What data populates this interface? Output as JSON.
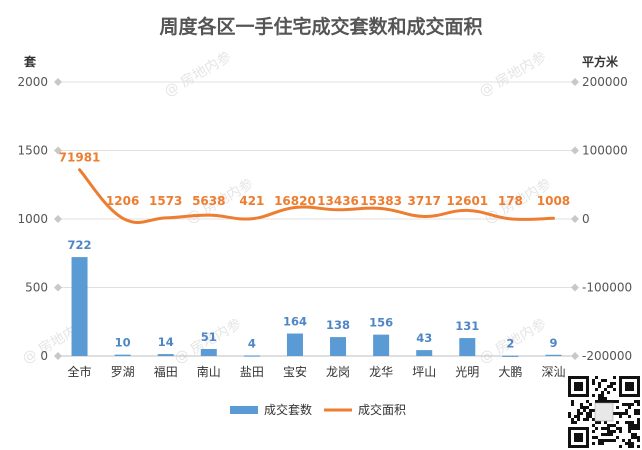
{
  "chart_data": {
    "type": "bar",
    "title": "周度各区一手住宅成交套数和成交面积",
    "y_left_unit": "套",
    "y_right_unit": "平方米",
    "ylim_left": [
      0,
      2000
    ],
    "ylim_right": [
      -200000,
      200000
    ],
    "yticks_left": [
      0,
      500,
      1000,
      1500,
      2000
    ],
    "yticks_right": [
      -200000,
      -100000,
      0,
      100000,
      200000
    ],
    "categories": [
      "全市",
      "罗湖",
      "福田",
      "南山",
      "盐田",
      "宝安",
      "龙岗",
      "龙华",
      "坪山",
      "光明",
      "大鹏",
      "深汕"
    ],
    "series": [
      {
        "name": "成交套数",
        "type": "bar",
        "axis": "left",
        "color": "#5b9bd5",
        "values": [
          722,
          10,
          14,
          51,
          4,
          164,
          138,
          156,
          43,
          131,
          2,
          9
        ]
      },
      {
        "name": "成交面积",
        "type": "line",
        "axis": "right",
        "color": "#ed7d31",
        "values": [
          71981,
          1206,
          1573,
          5638,
          421,
          16820,
          13436,
          15383,
          3717,
          12601,
          178,
          1008
        ]
      }
    ],
    "legend_position": "bottom",
    "grid": true
  },
  "watermark": "@ 房地内参"
}
